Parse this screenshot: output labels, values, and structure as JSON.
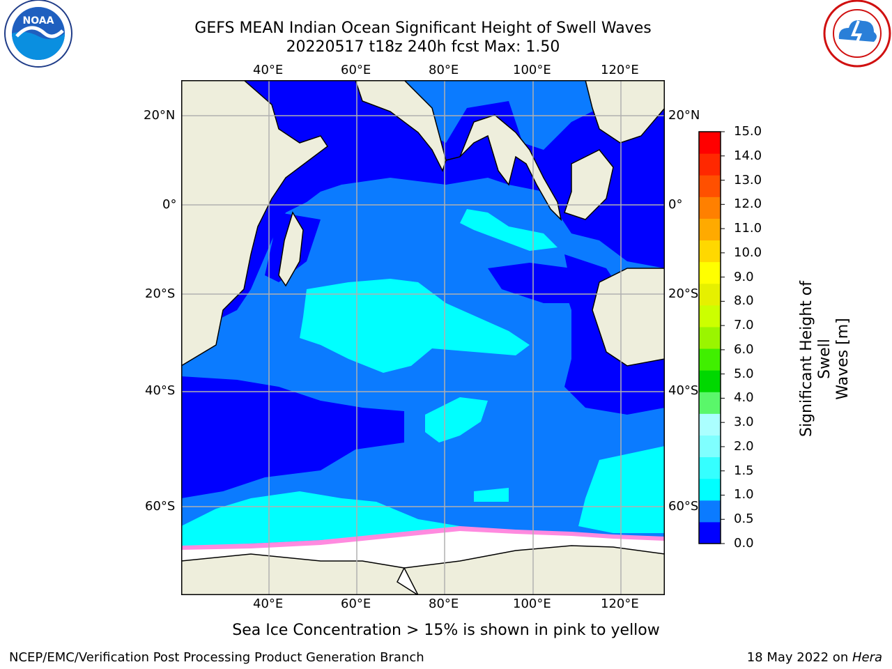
{
  "header": {
    "title_line1": "GEFS MEAN Indian Ocean Significant Height of Swell Waves",
    "title_line2": "20220517 t18z 240h fcst   Max: 1.50"
  },
  "logos": {
    "left": "NOAA",
    "right": "NATIONAL WEATHER SERVICE"
  },
  "map": {
    "lon_labels": [
      "40°E",
      "60°E",
      "80°E",
      "100°E",
      "120°E"
    ],
    "lat_labels": [
      "20°N",
      "0°",
      "20°S",
      "40°S",
      "60°S"
    ],
    "colors": {
      "land": "#eeeedc",
      "ocean_low": "#0000ff",
      "ocean_mid": "#0b7bff",
      "ocean_hi": "#00ffff",
      "ice": "#ffffff",
      "grid": "#b0b0b0"
    }
  },
  "colorbar": {
    "title_line1": "Significant Height of Swell",
    "title_line2": "Waves [m]",
    "ticks": [
      "15.0",
      "14.0",
      "13.0",
      "12.0",
      "11.0",
      "10.0",
      "9.0",
      "8.0",
      "7.0",
      "6.0",
      "5.0",
      "4.0",
      "3.0",
      "2.0",
      "1.5",
      "1.0",
      "0.5",
      "0.0"
    ],
    "colors_bottom_to_top": [
      "#0000ff",
      "#0b7bff",
      "#00ffff",
      "#35ffff",
      "#7fffff",
      "#abffff",
      "#5af76a",
      "#00d800",
      "#40ef00",
      "#9af500",
      "#ccff00",
      "#e6f000",
      "#ffff00",
      "#ffd800",
      "#ffaa00",
      "#ff8000",
      "#ff5000",
      "#ff2800",
      "#ff0000"
    ]
  },
  "note": "Sea Ice Concentration > 15% is shown in pink to yellow",
  "footer": {
    "left": "NCEP/EMC/Verification Post Processing Product Generation Branch",
    "right_prefix": "18 May 2022 on ",
    "right_host": "Hera"
  }
}
